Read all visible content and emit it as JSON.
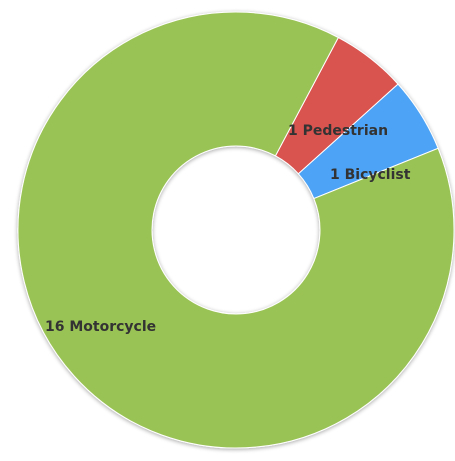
{
  "chart_data": {
    "type": "pie",
    "donut": true,
    "title": "",
    "slices": [
      {
        "label": "1 Pedestrian",
        "value": 1,
        "color": "#d9534f"
      },
      {
        "label": "1 Bicyclist",
        "value": 1,
        "color": "#4da3f5"
      },
      {
        "label": "16 Motorcycle",
        "value": 16,
        "color": "#9ac354"
      }
    ]
  }
}
